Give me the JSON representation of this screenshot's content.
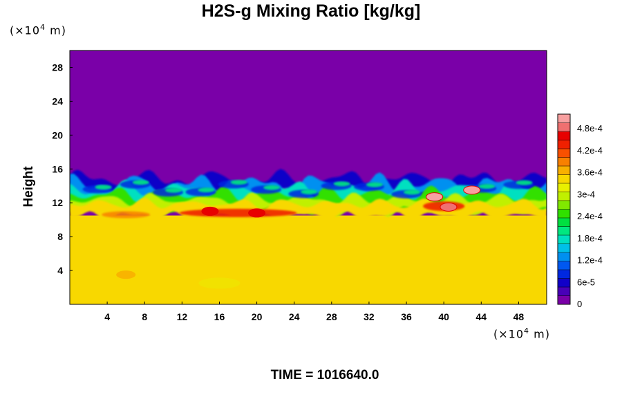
{
  "chart_data": {
    "type": "heatmap",
    "title": "H2S-g Mixing Ratio [kg/kg]",
    "ylabel": "Height",
    "x_unit_prefix": "(×10",
    "x_unit_exp": "4",
    "x_unit_suffix": " m)",
    "y_unit_prefix": "(×10",
    "y_unit_exp": "4",
    "y_unit_suffix": " m)",
    "xlim": [
      0,
      51
    ],
    "ylim": [
      0,
      30
    ],
    "xticks": [
      4,
      8,
      12,
      16,
      20,
      24,
      28,
      32,
      36,
      40,
      44,
      48
    ],
    "yticks": [
      4,
      8,
      12,
      16,
      20,
      24,
      28
    ],
    "colorbar": {
      "range": [
        0,
        0.00052
      ],
      "labels": [
        {
          "value": 0,
          "text": "0"
        },
        {
          "value": 6e-05,
          "text": "6e-5"
        },
        {
          "value": 0.00012,
          "text": "1.2e-4"
        },
        {
          "value": 0.00018,
          "text": "1.8e-4"
        },
        {
          "value": 0.00024,
          "text": "2.4e-4"
        },
        {
          "value": 0.0003,
          "text": "3e-4"
        },
        {
          "value": 0.00036,
          "text": "3.6e-4"
        },
        {
          "value": 0.00042,
          "text": "4.2e-4"
        },
        {
          "value": 0.00048,
          "text": "4.8e-4"
        }
      ],
      "colors": [
        "#7a00a8",
        "#4800b8",
        "#1000c8",
        "#0028e0",
        "#0058f0",
        "#0090f0",
        "#00c0e8",
        "#00e0c0",
        "#00e880",
        "#00e040",
        "#30e000",
        "#80e800",
        "#c0f000",
        "#e8f000",
        "#f8d800",
        "#f8b000",
        "#f88000",
        "#f85000",
        "#f02000",
        "#e80000",
        "#f07070",
        "#f8a0a0"
      ]
    },
    "regions": {
      "upper_value": 0,
      "lower_value": 0.00035,
      "interface_height_min": 10,
      "interface_height_max": 15,
      "high_patches": [
        {
          "x": 15,
          "y": 11,
          "value": 0.00046
        },
        {
          "x": 20,
          "y": 10.8,
          "value": 0.00047
        },
        {
          "x": 39,
          "y": 12.7,
          "value": 0.00052
        },
        {
          "x": 40.5,
          "y": 11.5,
          "value": 0.00048
        },
        {
          "x": 43,
          "y": 13.5,
          "value": 0.00052
        }
      ]
    }
  },
  "time_label": "TIME = 1016640.0"
}
